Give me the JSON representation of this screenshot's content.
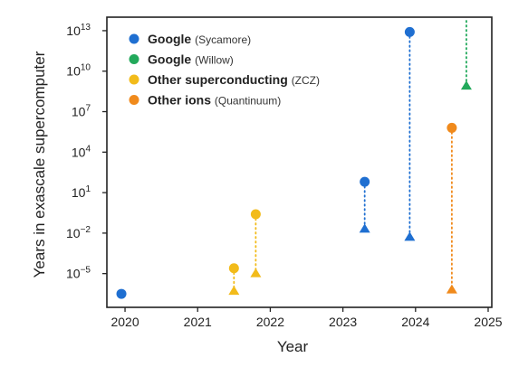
{
  "chart_data": {
    "type": "scatter",
    "title": "",
    "xlabel": "Year",
    "ylabel": "Years in exascale supercomputer",
    "y_scale": "log",
    "xlim": [
      2019.75,
      2025.05
    ],
    "ylim_exponent": [
      -7.5,
      14
    ],
    "x_ticks": [
      2020,
      2021,
      2022,
      2023,
      2024,
      2025
    ],
    "x_tick_labels": [
      "2020",
      "2021",
      "2022",
      "2023",
      "2024",
      "2025"
    ],
    "y_tick_exponents": [
      -5,
      -2,
      1,
      4,
      7,
      10,
      13
    ],
    "y_tick_base": "10",
    "grid": false,
    "legend_placement": "top-left",
    "series": [
      {
        "name_bold": "Google",
        "name_light": "(Sycamore)",
        "color": "#1f6fd1",
        "points": [
          {
            "x": 2019.95,
            "y_exp": -6.5,
            "marker": "circle"
          },
          {
            "x": 2023.3,
            "y_exp": 1.8,
            "marker": "circle"
          },
          {
            "x": 2023.3,
            "y_exp": -1.7,
            "marker": "triangle"
          },
          {
            "x": 2023.92,
            "y_exp": 12.9,
            "marker": "circle"
          },
          {
            "x": 2023.92,
            "y_exp": -2.3,
            "marker": "triangle"
          }
        ],
        "links": [
          [
            1,
            2
          ],
          [
            3,
            4
          ]
        ]
      },
      {
        "name_bold": "Google",
        "name_light": "(Willow)",
        "color": "#22a95b",
        "points": [
          {
            "x": 2024.7,
            "y_exp": 8.9,
            "marker": "triangle"
          }
        ],
        "links": [],
        "extends_above_plot": true
      },
      {
        "name_bold": "Other superconducting",
        "name_light": "(ZCZ)",
        "color": "#f2bb1a",
        "points": [
          {
            "x": 2021.5,
            "y_exp": -4.6,
            "marker": "circle"
          },
          {
            "x": 2021.5,
            "y_exp": -6.3,
            "marker": "triangle"
          },
          {
            "x": 2021.8,
            "y_exp": -0.6,
            "marker": "circle"
          },
          {
            "x": 2021.8,
            "y_exp": -5.0,
            "marker": "triangle"
          }
        ],
        "links": [
          [
            0,
            1
          ],
          [
            2,
            3
          ]
        ]
      },
      {
        "name_bold": "Other ions",
        "name_light": "(Quantinuum)",
        "color": "#f08a1c",
        "points": [
          {
            "x": 2024.5,
            "y_exp": 5.8,
            "marker": "circle"
          },
          {
            "x": 2024.5,
            "y_exp": -6.2,
            "marker": "triangle"
          }
        ],
        "links": [
          [
            0,
            1
          ]
        ]
      }
    ]
  }
}
